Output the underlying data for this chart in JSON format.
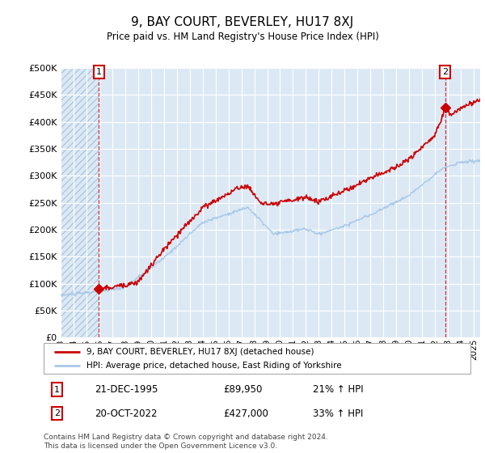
{
  "title": "9, BAY COURT, BEVERLEY, HU17 8XJ",
  "subtitle": "Price paid vs. HM Land Registry's House Price Index (HPI)",
  "ytick_values": [
    0,
    50000,
    100000,
    150000,
    200000,
    250000,
    300000,
    350000,
    400000,
    450000,
    500000
  ],
  "ylim": [
    0,
    500000
  ],
  "xlim_start": 1993.0,
  "xlim_end": 2025.5,
  "hpi_color": "#a8c8e8",
  "price_color": "#cc0000",
  "background_color": "#dce9f5",
  "grid_color": "#ffffff",
  "annotation_box_color": "#cc0000",
  "hatch_region_end": 1995.97,
  "sale1_x": 1995.97,
  "sale1_y": 89950,
  "sale1_label": "1",
  "sale1_date": "21-DEC-1995",
  "sale1_price": "£89,950",
  "sale1_hpi": "21% ↑ HPI",
  "sale2_x": 2022.79,
  "sale2_y": 427000,
  "sale2_label": "2",
  "sale2_date": "20-OCT-2022",
  "sale2_price": "£427,000",
  "sale2_hpi": "33% ↑ HPI",
  "legend_line1": "9, BAY COURT, BEVERLEY, HU17 8XJ (detached house)",
  "legend_line2": "HPI: Average price, detached house, East Riding of Yorkshire",
  "footer": "Contains HM Land Registry data © Crown copyright and database right 2024.\nThis data is licensed under the Open Government Licence v3.0.",
  "xtick_years": [
    1993,
    1994,
    1995,
    1996,
    1997,
    1998,
    1999,
    2000,
    2001,
    2002,
    2003,
    2004,
    2005,
    2006,
    2007,
    2008,
    2009,
    2010,
    2011,
    2012,
    2013,
    2014,
    2015,
    2016,
    2017,
    2018,
    2019,
    2020,
    2021,
    2022,
    2023,
    2024,
    2025
  ]
}
